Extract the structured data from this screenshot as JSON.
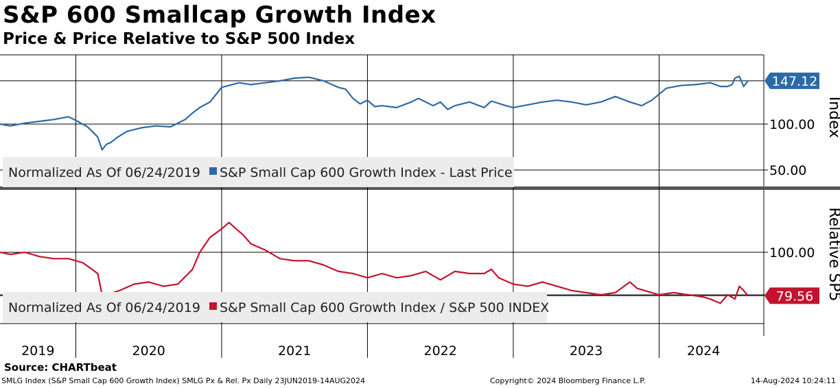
{
  "title": "S&P 600 Smallcap Growth Index",
  "subtitle": "Price & Price Relative to S&P 500 Index",
  "source": "Source: CHARTbeat",
  "footer": {
    "left": "SMLG Index (S&P Small Cap 600 Growth Index) SMLG Px & Rel. Px  Daily 23JUN2019-14AUG2024",
    "center": "Copyright© 2024 Bloomberg Finance L.P.",
    "right": "14-Aug-2024 10:24:11"
  },
  "colors": {
    "price": "#2b6aa7",
    "relative": "#c4122f",
    "legend_bg": "#ececec",
    "grid": "#000000"
  },
  "chart_data": [
    {
      "type": "line",
      "ylabel": "Index",
      "ylim": [
        35,
        165
      ],
      "yticks": [
        50,
        100
      ],
      "ytick_labels": [
        "50.00",
        "100.00"
      ],
      "last_value": 147.12,
      "last_value_label": "147.12",
      "legend": {
        "prefix": "Normalized As Of 06/24/2019",
        "entry": "S&P Small Cap 600 Growth Index - Last Price"
      },
      "series": [
        {
          "name": "S&P Small Cap 600 Growth Index - Last Price",
          "x": [
            2019.48,
            2019.55,
            2019.65,
            2019.75,
            2019.85,
            2019.95,
            2020.0,
            2020.08,
            2020.15,
            2020.18,
            2020.21,
            2020.24,
            2020.28,
            2020.35,
            2020.45,
            2020.55,
            2020.65,
            2020.75,
            2020.8,
            2020.85,
            2020.92,
            2021.0,
            2021.05,
            2021.12,
            2021.2,
            2021.3,
            2021.4,
            2021.5,
            2021.6,
            2021.7,
            2021.8,
            2021.85,
            2021.9,
            2021.95,
            2022.0,
            2022.05,
            2022.1,
            2022.2,
            2022.3,
            2022.35,
            2022.45,
            2022.5,
            2022.55,
            2022.6,
            2022.7,
            2022.8,
            2022.85,
            2022.95,
            2023.0,
            2023.1,
            2023.2,
            2023.3,
            2023.4,
            2023.5,
            2023.6,
            2023.7,
            2023.8,
            2023.88,
            2023.95,
            2024.05,
            2024.15,
            2024.25,
            2024.35,
            2024.42,
            2024.47,
            2024.5,
            2024.52,
            2024.55,
            2024.58,
            2024.61
          ],
          "values": [
            100,
            98,
            101,
            103,
            105,
            108,
            104,
            97,
            86,
            72,
            78,
            80,
            85,
            92,
            96,
            98,
            97,
            105,
            112,
            118,
            124,
            140,
            142,
            145,
            143,
            145,
            147,
            150,
            151,
            147,
            140,
            138,
            128,
            122,
            126,
            119,
            120,
            118,
            124,
            128,
            120,
            124,
            116,
            120,
            124,
            118,
            125,
            120,
            118,
            121,
            124,
            126,
            124,
            121,
            124,
            130,
            124,
            120,
            126,
            139,
            142,
            143,
            145,
            141,
            141,
            143,
            150,
            152,
            141,
            147.12
          ]
        }
      ]
    },
    {
      "type": "line",
      "ylabel": "Relative SP5",
      "ylim": [
        61,
        123
      ],
      "yticks": [
        80,
        100
      ],
      "ytick_labels": [
        "80.00",
        "100.00"
      ],
      "last_value": 79.56,
      "last_value_label": "79.56",
      "legend": {
        "prefix": "Normalized As Of 06/24/2019",
        "entry": "S&P Small Cap 600 Growth Index / S&P 500 INDEX"
      },
      "series": [
        {
          "name": "S&P Small Cap 600 Growth Index / S&P 500 INDEX",
          "x": [
            2019.48,
            2019.55,
            2019.65,
            2019.75,
            2019.85,
            2019.95,
            2020.05,
            2020.15,
            2020.18,
            2020.21,
            2020.3,
            2020.4,
            2020.5,
            2020.6,
            2020.7,
            2020.8,
            2020.85,
            2020.92,
            2021.0,
            2021.05,
            2021.1,
            2021.15,
            2021.2,
            2021.3,
            2021.4,
            2021.5,
            2021.6,
            2021.7,
            2021.8,
            2021.9,
            2022.0,
            2022.1,
            2022.2,
            2022.3,
            2022.4,
            2022.5,
            2022.6,
            2022.7,
            2022.8,
            2022.85,
            2022.9,
            2023.0,
            2023.1,
            2023.2,
            2023.3,
            2023.4,
            2023.5,
            2023.6,
            2023.7,
            2023.8,
            2023.85,
            2023.9,
            2024.0,
            2024.1,
            2024.2,
            2024.3,
            2024.35,
            2024.42,
            2024.47,
            2024.52,
            2024.55,
            2024.58,
            2024.61
          ],
          "values": [
            100,
            99,
            100,
            98,
            97,
            97,
            95,
            90,
            80,
            80,
            82,
            85,
            86,
            84,
            85,
            92,
            100,
            107,
            111,
            114,
            111,
            108,
            104,
            101,
            97,
            96,
            96,
            94,
            91,
            90,
            88,
            90,
            88,
            89,
            91,
            87,
            91,
            90,
            90,
            92,
            88,
            85,
            84,
            86,
            84,
            82,
            81,
            80,
            81,
            86,
            83,
            82,
            80,
            81,
            80,
            79,
            78,
            76,
            80,
            78,
            84,
            82,
            79.56
          ]
        }
      ]
    }
  ],
  "x_axis": {
    "year_labels": [
      "2019",
      "2020",
      "2021",
      "2022",
      "2023",
      "2024"
    ]
  }
}
